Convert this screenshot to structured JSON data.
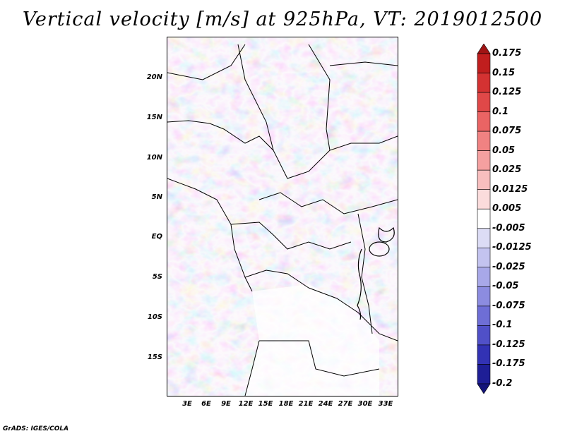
{
  "title": "Vertical velocity [m/s] at 925hPa, VT: 2019012500",
  "footer": "GrADS: IGES/COLA",
  "lat_labels": [
    "20N",
    "15N",
    "10N",
    "5N",
    "EQ",
    "5S",
    "10S",
    "15S"
  ],
  "lon_labels": [
    "3E",
    "6E",
    "9E",
    "12E",
    "15E",
    "18E",
    "21E",
    "24E",
    "27E",
    "30E",
    "33E"
  ],
  "colorbar": {
    "labels": [
      "0.175",
      "0.15",
      "0.125",
      "0.1",
      "0.075",
      "0.05",
      "0.025",
      "0.0125",
      "0.005",
      "-0.005",
      "-0.0125",
      "-0.025",
      "-0.05",
      "-0.075",
      "-0.1",
      "-0.125",
      "-0.175",
      "-0.2"
    ],
    "colors": [
      "#a01414",
      "#c01e1e",
      "#d43232",
      "#e04848",
      "#ea6464",
      "#f08282",
      "#f5a0a0",
      "#f8bebe",
      "#fbdcdc",
      "#ffffff",
      "#dcdcf5",
      "#c3c3ef",
      "#a8a8e8",
      "#8c8ce0",
      "#6e6ed6",
      "#5050c8",
      "#3232b4",
      "#1e1e96",
      "#14147a"
    ]
  }
}
